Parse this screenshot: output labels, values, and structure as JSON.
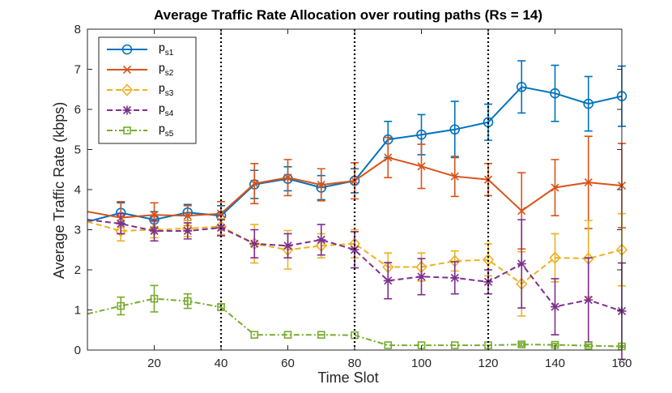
{
  "chart_data": {
    "type": "line",
    "title": "Average Traffic Rate Allocation over routing paths (Rs = 14)",
    "xlabel": "Time Slot",
    "ylabel": "Average Traffic Rate (kbps)",
    "xlim": [
      0,
      160
    ],
    "ylim": [
      0,
      8
    ],
    "xticks": [
      20,
      40,
      60,
      80,
      100,
      120,
      140,
      160
    ],
    "yticks": [
      0,
      1,
      2,
      3,
      4,
      5,
      6,
      7,
      8
    ],
    "vlines": [
      40,
      80,
      120
    ],
    "grid": false,
    "legend_position": "top-left",
    "series": [
      {
        "name_main": "p",
        "name_sub": "s1",
        "color": "#0072BD",
        "dash": "solid",
        "marker": "circle",
        "x": [
          0,
          10,
          20,
          30,
          40,
          50,
          60,
          70,
          80,
          90,
          100,
          110,
          120,
          130,
          140,
          150,
          160
        ],
        "y": [
          3.2,
          3.42,
          3.25,
          3.43,
          3.35,
          4.13,
          4.27,
          4.05,
          4.22,
          5.25,
          5.37,
          5.5,
          5.68,
          6.56,
          6.4,
          6.14,
          6.33
        ],
        "err": [
          null,
          0.25,
          0.2,
          0.2,
          0.25,
          0.35,
          0.3,
          0.3,
          0.3,
          0.45,
          0.5,
          0.7,
          0.45,
          0.65,
          0.7,
          0.68,
          0.75
        ]
      },
      {
        "name_main": "p",
        "name_sub": "s2",
        "color": "#D95319",
        "dash": "solid",
        "marker": "x",
        "x": [
          0,
          10,
          20,
          30,
          40,
          50,
          60,
          70,
          80,
          90,
          100,
          110,
          120,
          130,
          140,
          150,
          160
        ],
        "y": [
          3.45,
          3.3,
          3.37,
          3.35,
          3.4,
          4.15,
          4.3,
          4.12,
          4.22,
          4.8,
          4.58,
          4.33,
          4.25,
          3.47,
          4.05,
          4.18,
          4.1
        ],
        "err": [
          null,
          0.4,
          0.3,
          0.25,
          0.3,
          0.5,
          0.45,
          0.4,
          0.45,
          0.5,
          0.55,
          0.5,
          0.4,
          0.95,
          0.7,
          1.15,
          1.05
        ]
      },
      {
        "name_main": "p",
        "name_sub": "s3",
        "color": "#EDB120",
        "dash": "dashed",
        "marker": "diamond",
        "x": [
          0,
          10,
          20,
          30,
          40,
          50,
          60,
          70,
          80,
          90,
          100,
          110,
          120,
          130,
          140,
          150,
          160
        ],
        "y": [
          3.2,
          2.97,
          3.0,
          3.03,
          3.08,
          2.65,
          2.5,
          2.6,
          2.65,
          2.07,
          2.07,
          2.22,
          2.25,
          1.65,
          2.3,
          2.28,
          2.5
        ],
        "err": [
          null,
          0.25,
          0.2,
          0.2,
          0.2,
          0.48,
          0.48,
          0.3,
          0.35,
          0.35,
          0.35,
          0.25,
          0.4,
          0.8,
          0.6,
          0.95,
          0.9
        ]
      },
      {
        "name_main": "p",
        "name_sub": "s4",
        "color": "#7E2F8E",
        "dash": "dashed",
        "marker": "star",
        "x": [
          0,
          10,
          20,
          30,
          40,
          50,
          60,
          70,
          80,
          90,
          100,
          110,
          120,
          130,
          140,
          150,
          160
        ],
        "y": [
          3.25,
          3.15,
          2.97,
          2.97,
          3.05,
          2.65,
          2.6,
          2.75,
          2.5,
          1.73,
          1.83,
          1.8,
          1.7,
          2.15,
          1.08,
          1.25,
          0.97
        ],
        "err": [
          null,
          0.25,
          0.25,
          0.2,
          0.2,
          0.35,
          0.3,
          0.38,
          0.45,
          0.45,
          0.45,
          0.4,
          0.3,
          1.1,
          0.7,
          1.05,
          1.2
        ]
      },
      {
        "name_main": "p",
        "name_sub": "s5",
        "color": "#77AC30",
        "dash": "dashdot",
        "marker": "square",
        "x": [
          0,
          10,
          20,
          30,
          40,
          50,
          60,
          70,
          80,
          90,
          100,
          110,
          120,
          130,
          140,
          150,
          160
        ],
        "y": [
          0.9,
          1.1,
          1.28,
          1.22,
          1.07,
          0.38,
          0.38,
          0.38,
          0.37,
          0.12,
          0.12,
          0.12,
          0.12,
          0.14,
          0.13,
          0.11,
          0.09
        ],
        "err": [
          null,
          0.22,
          0.33,
          0.18,
          0.08,
          null,
          null,
          null,
          null,
          null,
          null,
          null,
          null,
          0.04,
          0.03,
          0.03,
          0.02
        ]
      }
    ]
  }
}
